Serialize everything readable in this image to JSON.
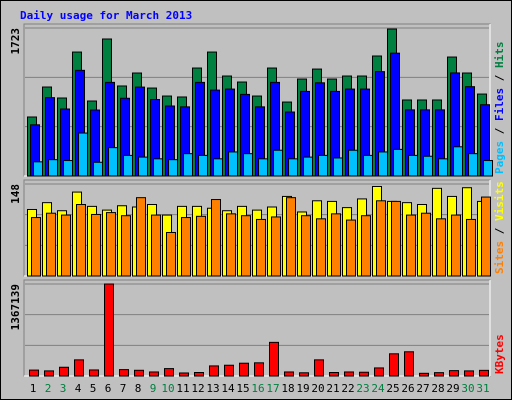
{
  "title": "Daily usage for March 2013",
  "categories": [
    "1",
    "2",
    "3",
    "4",
    "5",
    "6",
    "7",
    "8",
    "9",
    "10",
    "11",
    "12",
    "13",
    "14",
    "15",
    "16",
    "17",
    "18",
    "19",
    "20",
    "21",
    "22",
    "23",
    "24",
    "25",
    "26",
    "27",
    "28",
    "29",
    "30",
    "31"
  ],
  "category_colors": [
    "#000000",
    "#008040",
    "#008040",
    "#000000",
    "#000000",
    "#000000",
    "#000000",
    "#000000",
    "#008040",
    "#008040",
    "#000000",
    "#000000",
    "#000000",
    "#000000",
    "#000000",
    "#008040",
    "#008040",
    "#000000",
    "#000000",
    "#000000",
    "#000000",
    "#000000",
    "#008040",
    "#008040",
    "#000000",
    "#000000",
    "#000000",
    "#000000",
    "#000000",
    "#008040",
    "#008040"
  ],
  "chart_data": [
    {
      "type": "bar",
      "ylim": [
        0,
        1723
      ],
      "yticks": [
        1723
      ],
      "legend_separator": " / ",
      "series": [
        {
          "name": "Hits",
          "color": "#008040",
          "values": [
            687,
            1036,
            908,
            1443,
            873,
            1595,
            1048,
            1199,
            1024,
            931,
            920,
            1257,
            1443,
            1164,
            1094,
            931,
            1257,
            861,
            1129,
            1245,
            1129,
            1164,
            1164,
            1397,
            1711,
            885,
            885,
            885,
            1385,
            1199,
            954
          ]
        },
        {
          "name": "Files",
          "color": "#0000ff",
          "values": [
            596,
            912,
            780,
            1230,
            768,
            1090,
            905,
            1035,
            890,
            815,
            805,
            1090,
            1000,
            1012,
            950,
            805,
            1090,
            745,
            985,
            1085,
            985,
            1012,
            1012,
            1215,
            1430,
            770,
            770,
            770,
            1200,
            1040,
            830
          ]
        },
        {
          "name": "Pages",
          "color": "#00c0ff",
          "values": [
            165,
            190,
            180,
            500,
            160,
            330,
            240,
            220,
            200,
            190,
            260,
            240,
            200,
            280,
            260,
            200,
            300,
            200,
            220,
            240,
            210,
            300,
            240,
            280,
            310,
            240,
            230,
            200,
            340,
            260,
            180
          ]
        }
      ]
    },
    {
      "type": "bar",
      "ylim": [
        0,
        148
      ],
      "yticks": [
        148
      ],
      "legend_separator": " / ",
      "series": [
        {
          "name": "Visits",
          "color": "#ffff00",
          "values": [
            107,
            118,
            105,
            135,
            112,
            106,
            113,
            111,
            115,
            98,
            112,
            112,
            109,
            105,
            112,
            106,
            111,
            128,
            103,
            121,
            120,
            110,
            124,
            144,
            120,
            118,
            115,
            141,
            128,
            142,
            120
          ]
        },
        {
          "name": "Sites",
          "color": "#ff8000",
          "values": [
            94,
            101,
            98,
            115,
            99,
            102,
            97,
            126,
            98,
            70,
            94,
            96,
            123,
            100,
            97,
            91,
            95,
            126,
            97,
            92,
            100,
            90,
            97,
            121,
            120,
            98,
            101,
            92,
            98,
            91,
            127
          ]
        }
      ]
    },
    {
      "type": "bar",
      "ylim": [
        0,
        1367139
      ],
      "yticks": [
        1367139
      ],
      "series": [
        {
          "name": "KBytes",
          "color": "#ff0000",
          "values": [
            88000,
            76000,
            130000,
            240000,
            90000,
            1367139,
            95000,
            85000,
            60000,
            110000,
            45000,
            52000,
            150000,
            160000,
            190000,
            196000,
            500000,
            60000,
            48000,
            240000,
            52000,
            60000,
            56000,
            120000,
            330000,
            360000,
            40000,
            50000,
            80000,
            76000,
            84000
          ]
        }
      ]
    }
  ]
}
